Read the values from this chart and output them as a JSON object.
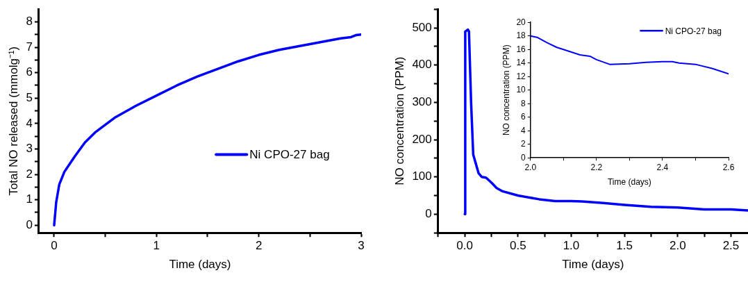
{
  "chart_data": [
    {
      "type": "line",
      "xlabel": "Time (days)",
      "ylabel": "Total NO released (mmolg⁻¹)",
      "xlim": [
        -0.15,
        3
      ],
      "ylim": [
        -0.3,
        8.5
      ],
      "xticks": [
        0,
        {
          "value": 0.5,
          "label": null
        },
        1,
        {
          "value": 1.5,
          "label": null
        },
        2,
        {
          "value": 2.5,
          "label": null
        },
        3
      ],
      "yticks": [
        0,
        {
          "value": 0.5,
          "label": null
        },
        1,
        {
          "value": 1.5,
          "label": null
        },
        2,
        {
          "value": 2.5,
          "label": null
        },
        3,
        {
          "value": 3.5,
          "label": null
        },
        4,
        {
          "value": 4.5,
          "label": null
        },
        5,
        {
          "value": 5.5,
          "label": null
        },
        6,
        {
          "value": 6.5,
          "label": null
        },
        7,
        {
          "value": 7.5,
          "label": null
        },
        8
      ],
      "legend": "right",
      "marker": "none",
      "grid": false,
      "series": [
        {
          "name": "Ni CPO-27 bag",
          "color": "#0000ff",
          "x": [
            0,
            0.02,
            0.05,
            0.1,
            0.2,
            0.3,
            0.4,
            0.5,
            0.6,
            0.8,
            1.0,
            1.2,
            1.4,
            1.6,
            1.8,
            2.0,
            2.2,
            2.4,
            2.6,
            2.8,
            2.9,
            2.95,
            3.0
          ],
          "values": [
            0,
            0.9,
            1.6,
            2.1,
            2.7,
            3.25,
            3.65,
            3.95,
            4.25,
            4.7,
            5.1,
            5.5,
            5.85,
            6.15,
            6.45,
            6.7,
            6.9,
            7.05,
            7.2,
            7.35,
            7.4,
            7.48,
            7.5
          ]
        }
      ]
    },
    {
      "type": "line",
      "xlabel": "Time (days)",
      "ylabel": "NO concentration (PPM)",
      "xlim": [
        -0.25,
        2.66
      ],
      "ylim": [
        -50,
        550
      ],
      "xticks": [
        {
          "value": -0.25,
          "label": null
        },
        {
          "value": 0,
          "label": "0.0"
        },
        {
          "value": 0.25,
          "label": null
        },
        0.5,
        {
          "value": 0.75,
          "label": null
        },
        {
          "value": 1,
          "label": "1.0"
        },
        {
          "value": 1.25,
          "label": null
        },
        1.5,
        {
          "value": 1.75,
          "label": null
        },
        {
          "value": 2,
          "label": "2.0"
        },
        {
          "value": 2.25,
          "label": null
        },
        2.5
      ],
      "yticks": [
        {
          "value": -50,
          "label": null
        },
        0,
        {
          "value": 50,
          "label": null
        },
        100,
        {
          "value": 150,
          "label": null
        },
        200,
        {
          "value": 250,
          "label": null
        },
        300,
        {
          "value": 350,
          "label": null
        },
        400,
        {
          "value": 450,
          "label": null
        },
        500,
        {
          "value": 550,
          "label": null
        }
      ],
      "marker": "none",
      "grid": false,
      "series": [
        {
          "color": "#0000ff",
          "x": [
            0,
            0.005,
            0.03,
            0.04,
            0.06,
            0.08,
            0.1,
            0.13,
            0.16,
            0.2,
            0.25,
            0.3,
            0.35,
            0.5,
            0.7,
            0.85,
            1.0,
            1.1,
            1.3,
            1.5,
            1.75,
            2.0,
            2.25,
            2.5,
            2.66
          ],
          "values": [
            0,
            490,
            495,
            490,
            300,
            160,
            140,
            110,
            100,
            98,
            85,
            70,
            62,
            50,
            40,
            35,
            35,
            34,
            30,
            25,
            20,
            18,
            13,
            13,
            10
          ]
        }
      ]
    },
    {
      "type": "line",
      "xlabel": "Time (days)",
      "ylabel": "NO concentration (PPM)",
      "xlim": [
        2.0,
        2.6
      ],
      "ylim": [
        0,
        20
      ],
      "xticks": [
        {
          "value": 2.0,
          "label": "2.0"
        },
        {
          "value": 2.1,
          "label": null
        },
        2.2,
        {
          "value": 2.3,
          "label": null
        },
        2.4,
        {
          "value": 2.5,
          "label": null
        },
        2.6
      ],
      "yticks": [
        0,
        2,
        4,
        6,
        8,
        10,
        12,
        14,
        16,
        18,
        20
      ],
      "legend": "top right",
      "marker": "none",
      "grid": false,
      "series": [
        {
          "name": "Ni CPO-27 bag",
          "color": "#0000ff",
          "x": [
            2.0,
            2.02,
            2.05,
            2.08,
            2.1,
            2.15,
            2.18,
            2.2,
            2.24,
            2.3,
            2.35,
            2.4,
            2.43,
            2.45,
            2.5,
            2.55,
            2.6
          ],
          "values": [
            18,
            17.8,
            17,
            16.3,
            16,
            15.2,
            15,
            14.5,
            13.8,
            13.9,
            14.1,
            14.2,
            14.2,
            14.0,
            13.8,
            13.2,
            12.4
          ]
        }
      ]
    }
  ]
}
